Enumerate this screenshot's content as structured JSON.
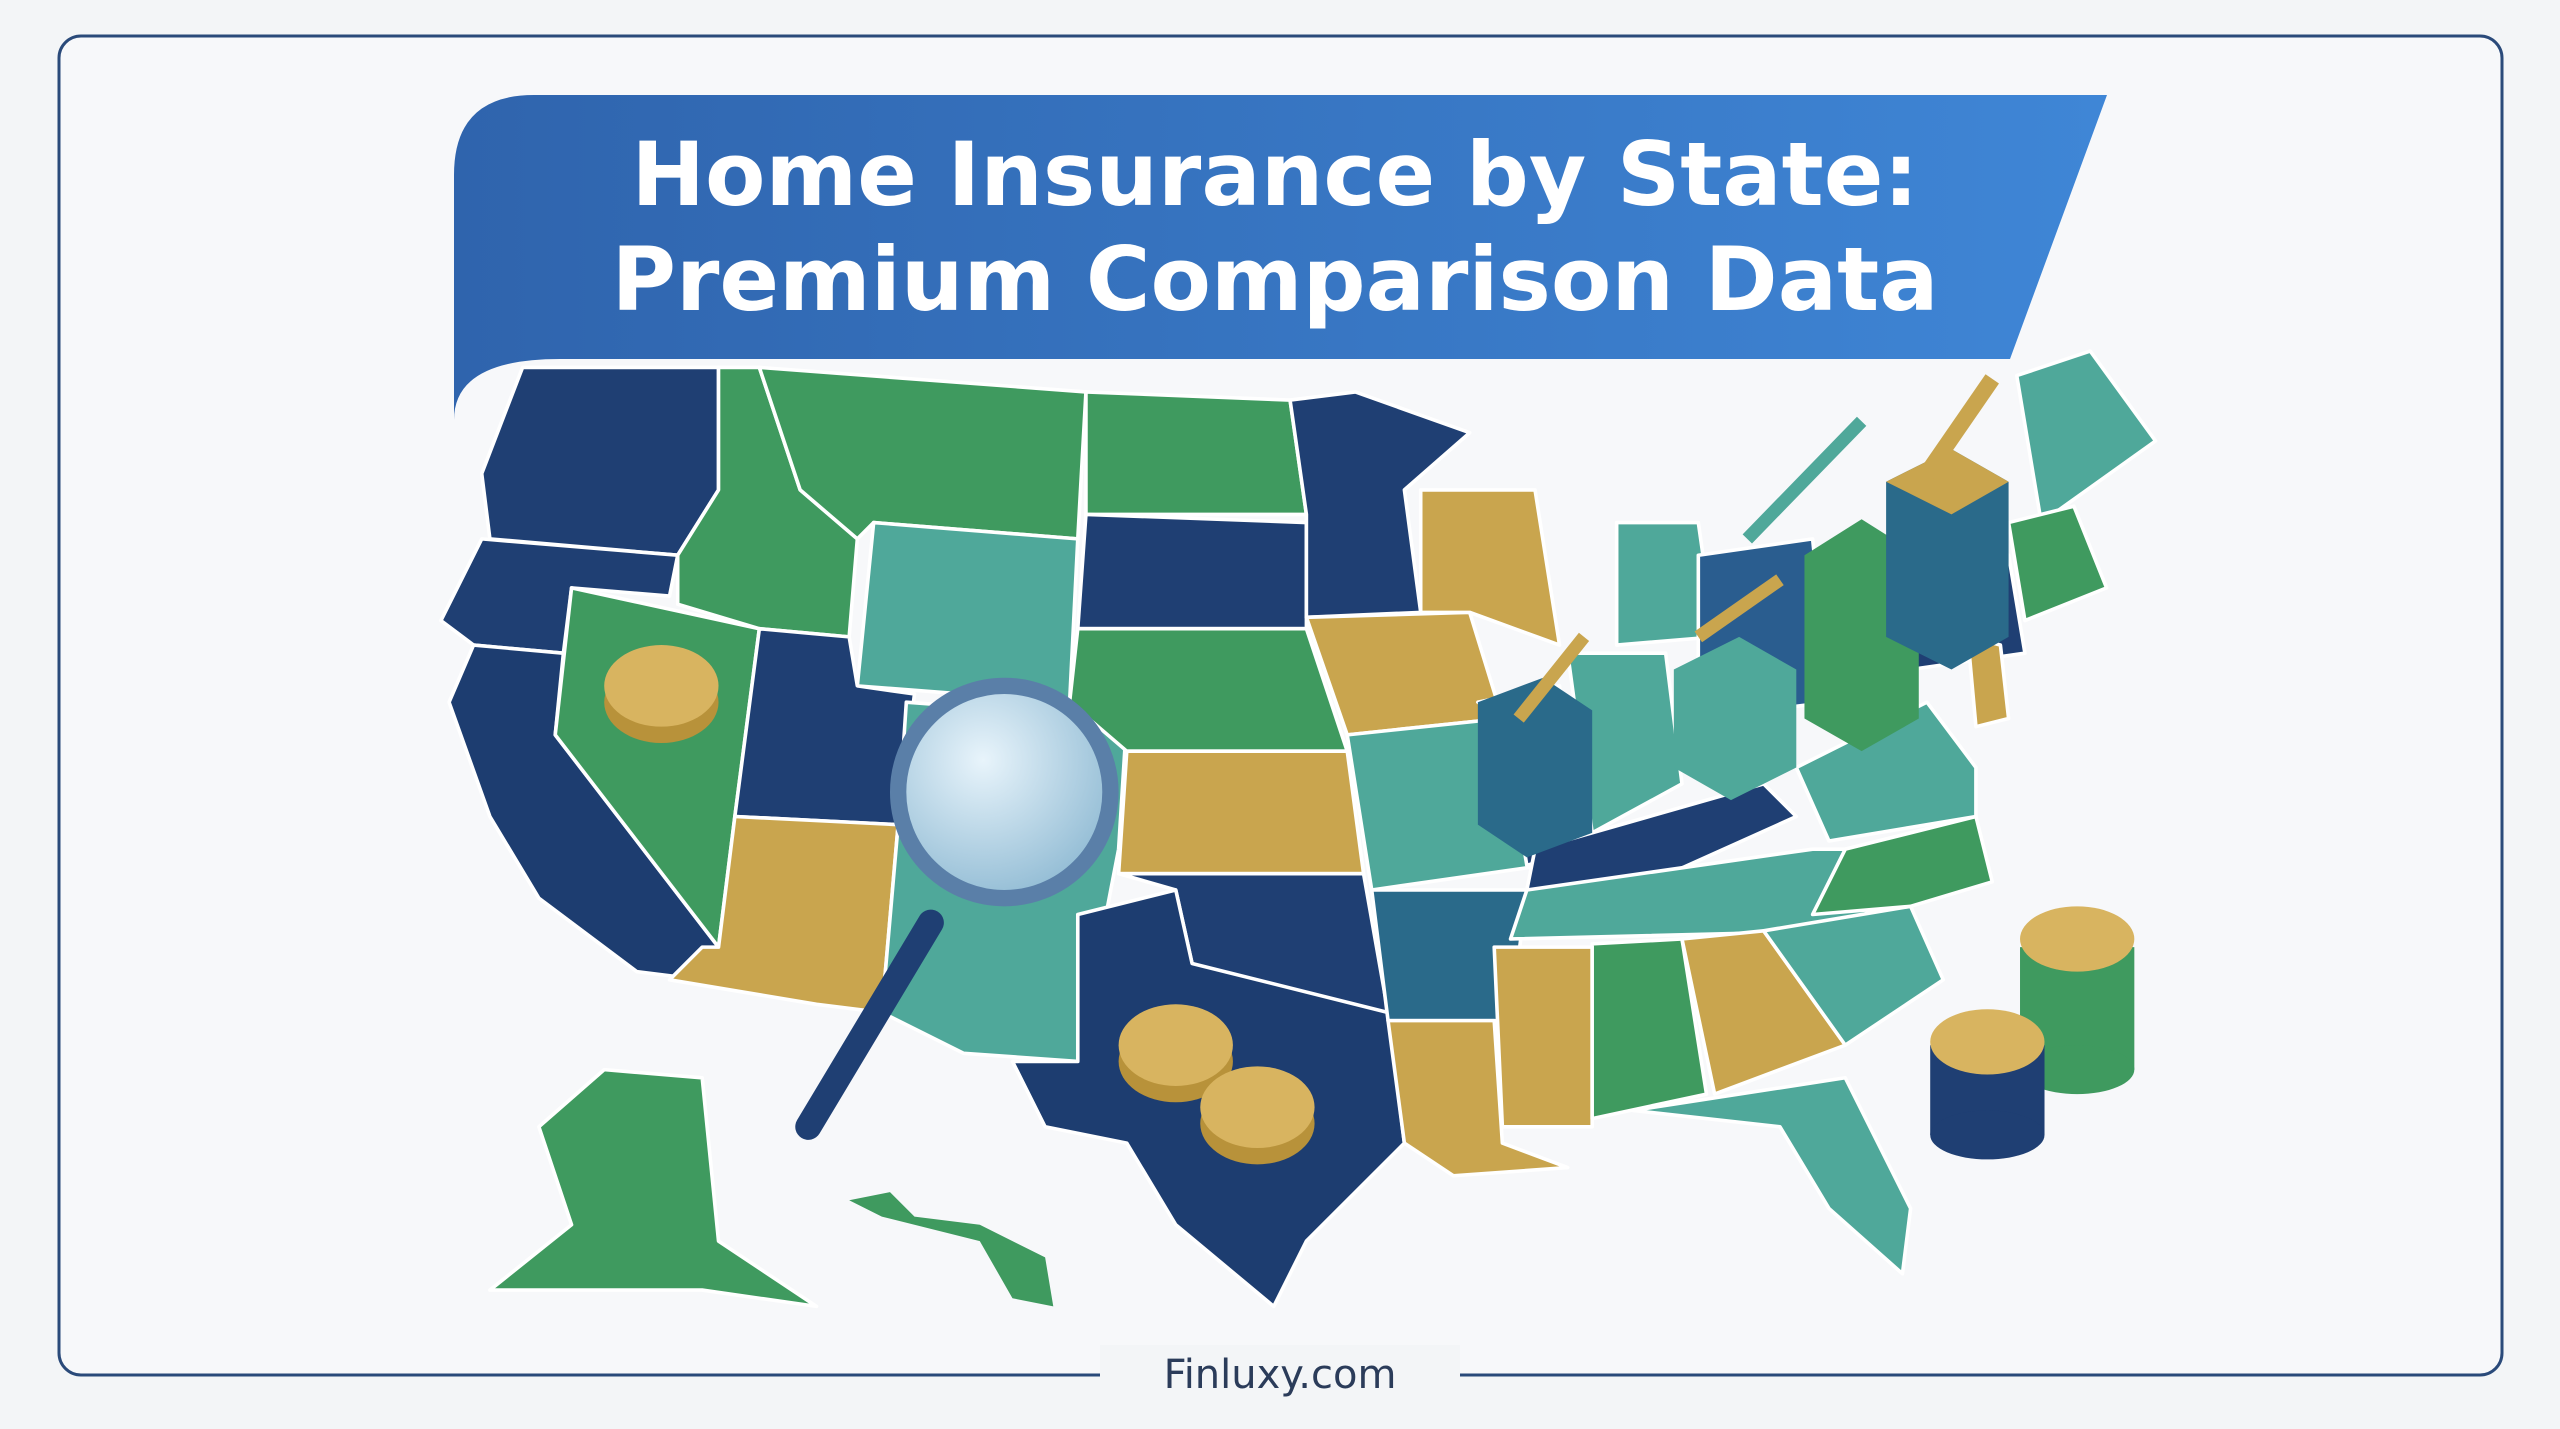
{
  "header": {
    "title": [
      "Home Insurance by State:",
      "Premium Comparison Data"
    ]
  },
  "footer": {
    "text": "Finluxy.com"
  }
}
